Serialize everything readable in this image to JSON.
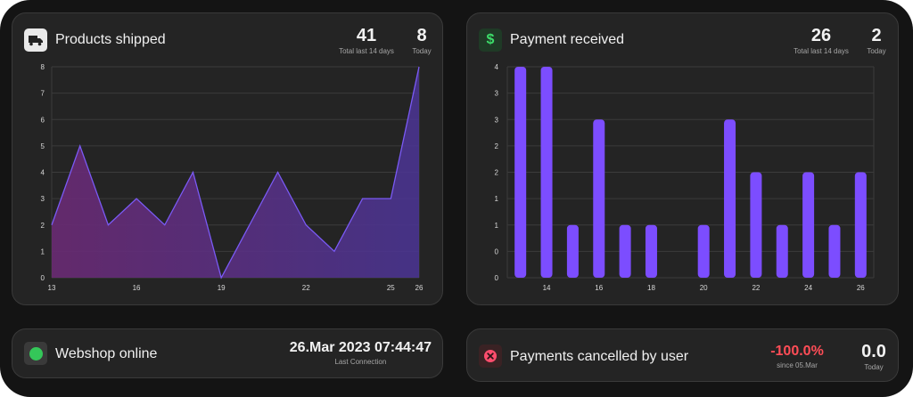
{
  "cards": {
    "products_shipped": {
      "title": "Products shipped",
      "icon": "truck-icon",
      "total": "41",
      "total_label": "Total last 14 days",
      "today": "8",
      "today_label": "Today"
    },
    "payment_received": {
      "title": "Payment received",
      "icon": "dollar-icon",
      "total": "26",
      "total_label": "Total last 14 days",
      "today": "2",
      "today_label": "Today"
    },
    "webshop_online": {
      "title": "Webshop online",
      "icon": "status-dot-icon",
      "status_color": "#34c759",
      "last_connection": "26.Mar 2023 07:44:47",
      "last_connection_label": "Last Connection"
    },
    "payments_cancelled": {
      "title": "Payments cancelled by user",
      "icon": "cancel-icon",
      "change": "-100.0%",
      "change_color": "#ff4d57",
      "change_label": "since 05.Mar",
      "today": "0.0",
      "today_label": "Today"
    }
  },
  "chart_data": [
    {
      "type": "area",
      "x": [
        13,
        14,
        15,
        16,
        17,
        18,
        19,
        20,
        21,
        22,
        23,
        24,
        25,
        26
      ],
      "values": [
        2,
        5,
        2,
        3,
        2,
        4,
        0,
        2,
        4,
        2,
        1,
        3,
        3,
        8
      ],
      "xticks": [
        "13",
        "16",
        "19",
        "22",
        "25",
        "26"
      ],
      "yticks": [
        "0",
        "1",
        "2",
        "3",
        "4",
        "5",
        "6",
        "7",
        "8"
      ],
      "ylim": [
        0,
        8
      ],
      "grid": true,
      "colors": [
        "#6a2a73",
        "#4b3596",
        "#7a5af5"
      ]
    },
    {
      "type": "bar",
      "x": [
        13,
        14,
        15,
        16,
        17,
        18,
        19,
        20,
        21,
        22,
        23,
        24,
        25,
        26
      ],
      "values": [
        4,
        4,
        1,
        3,
        1,
        1,
        0,
        1,
        3,
        2,
        1,
        2,
        1,
        2
      ],
      "xticks": [
        "14",
        "16",
        "18",
        "20",
        "22",
        "24",
        "26"
      ],
      "yticks": [
        "0",
        "0",
        "1",
        "1",
        "2",
        "2",
        "3",
        "3",
        "4"
      ],
      "ylim": [
        0,
        4
      ],
      "grid": true,
      "color": "#7c4dff"
    }
  ]
}
